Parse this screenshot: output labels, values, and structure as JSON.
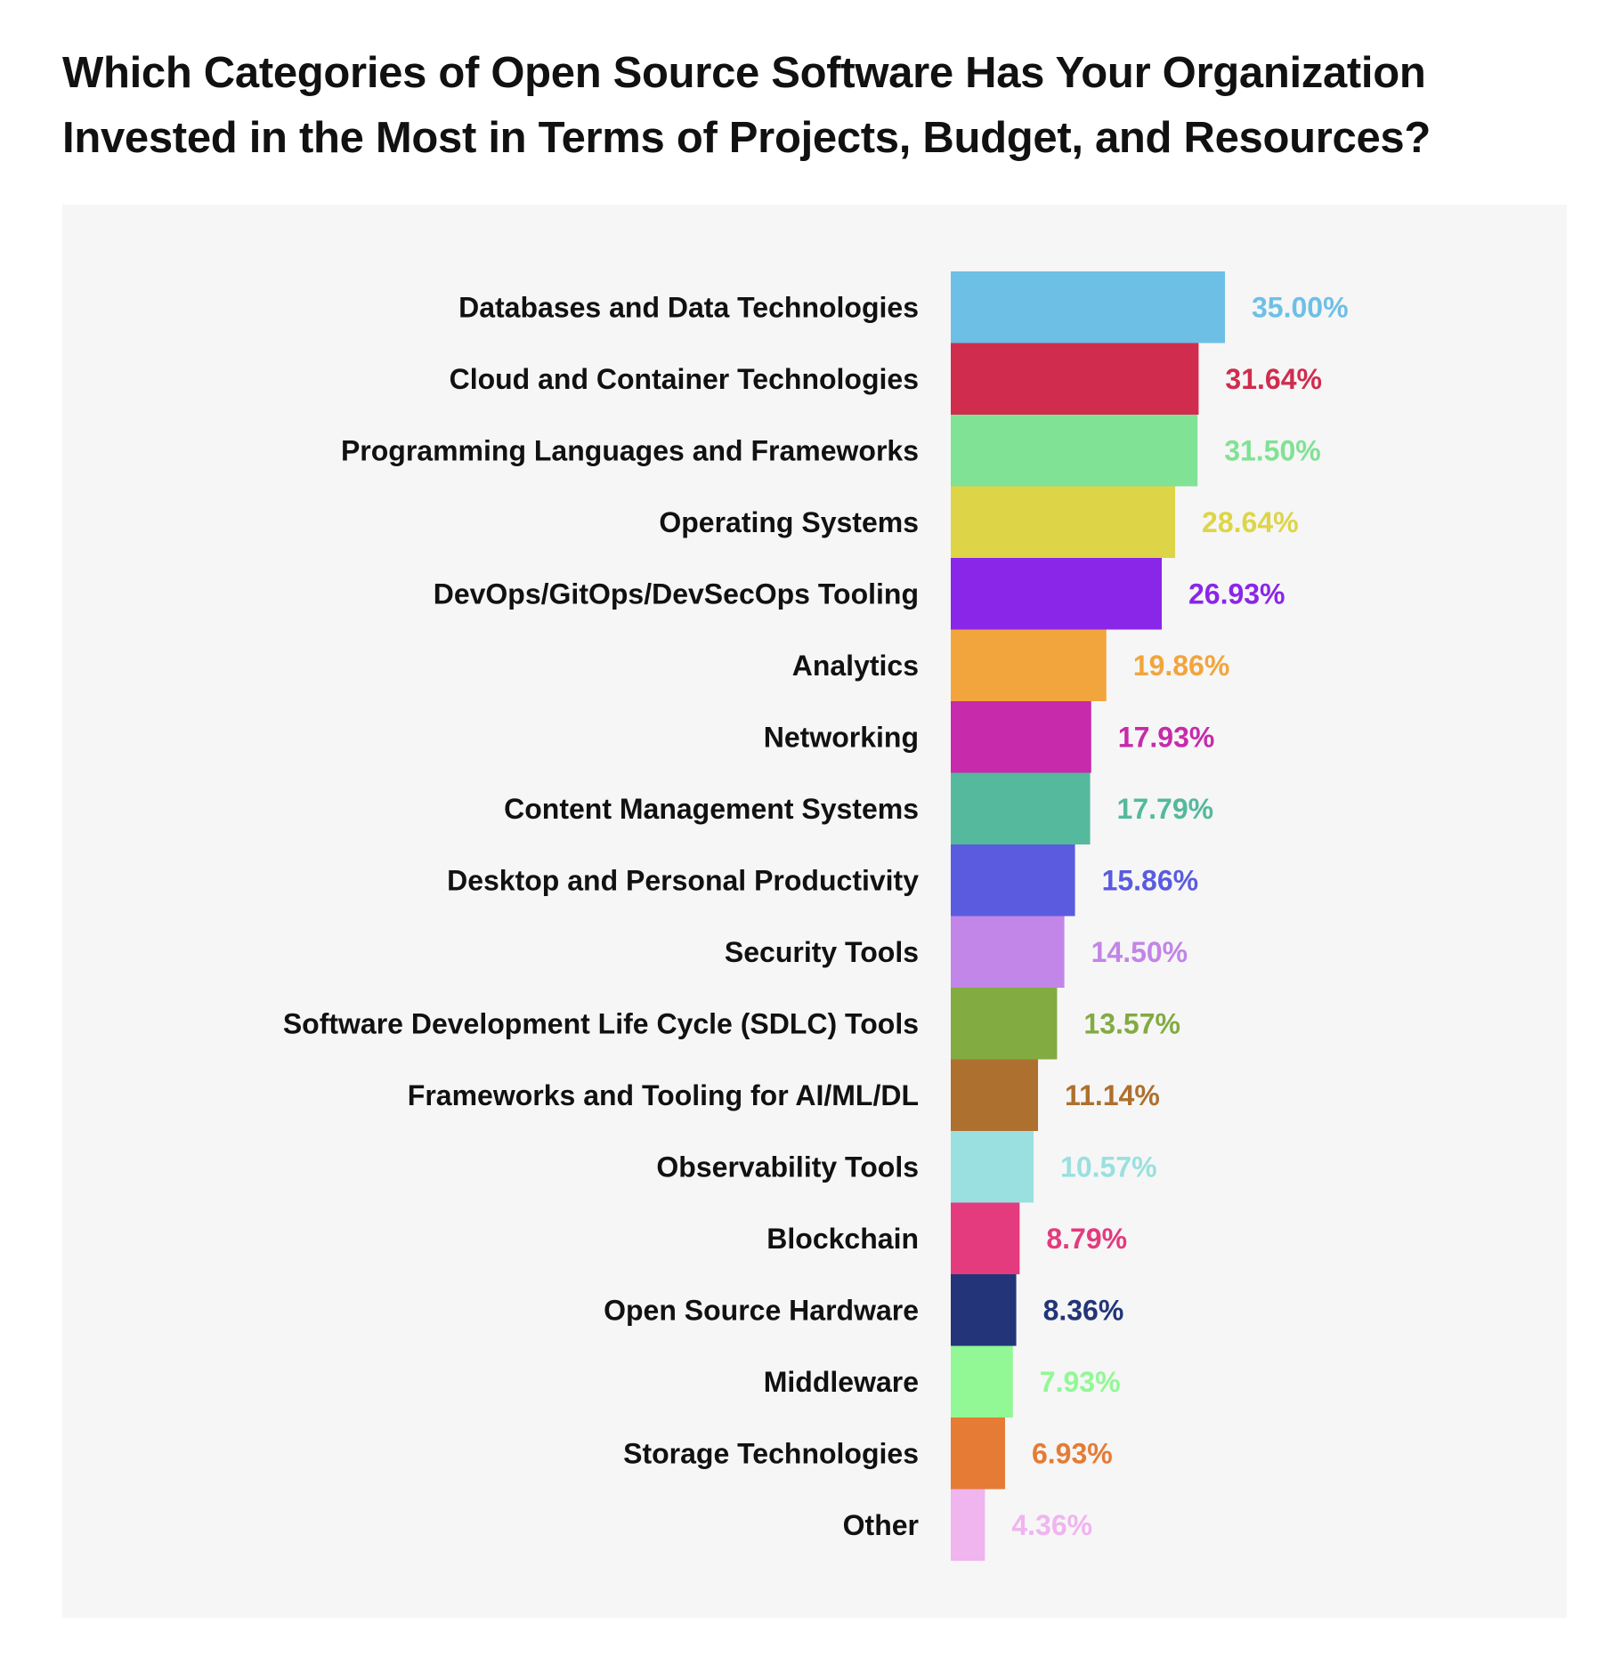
{
  "chart_data": {
    "type": "bar",
    "orientation": "horizontal",
    "title": "Which Categories of Open Source Software Has Your Organization Invested in the Most in Terms of Projects, Budget, and Resources?",
    "xlabel": "",
    "ylabel": "",
    "grid": false,
    "legend": "none",
    "xlim": [
      0,
      100
    ],
    "value_suffix": "%",
    "categories": [
      "Databases and Data Technologies",
      "Cloud and Container Technologies",
      "Programming Languages and Frameworks",
      "Operating Systems",
      "DevOps/GitOps/DevSecOps Tooling",
      "Analytics",
      "Networking",
      "Content Management Systems",
      "Desktop and Personal Productivity",
      "Security Tools",
      "Software Development Life Cycle (SDLC) Tools",
      "Frameworks and Tooling for AI/ML/DL",
      "Observability Tools",
      "Blockchain",
      "Open Source Hardware",
      "Middleware",
      "Storage Technologies",
      "Other"
    ],
    "values": [
      35.0,
      31.64,
      31.5,
      28.64,
      26.93,
      19.86,
      17.93,
      17.79,
      15.86,
      14.5,
      13.57,
      11.14,
      10.57,
      8.79,
      8.36,
      7.93,
      6.93,
      4.36
    ],
    "value_labels": [
      "35.00%",
      "31.64%",
      "31.50%",
      "28.64%",
      "26.93%",
      "19.86%",
      "17.93%",
      "17.79%",
      "15.86%",
      "14.50%",
      "13.57%",
      "11.14%",
      "10.57%",
      "8.79%",
      "8.36%",
      "7.93%",
      "6.93%",
      "4.36%"
    ],
    "colors": [
      "#6ebfe6",
      "#d02c4e",
      "#80e294",
      "#ddd547",
      "#8a26e8",
      "#f2a53c",
      "#c72aab",
      "#54b99d",
      "#5a5bdf",
      "#c285e8",
      "#82ab42",
      "#ae702e",
      "#9ae0e0",
      "#e43a7e",
      "#233578",
      "#92f895",
      "#e57b35",
      "#f0b4ef"
    ]
  }
}
